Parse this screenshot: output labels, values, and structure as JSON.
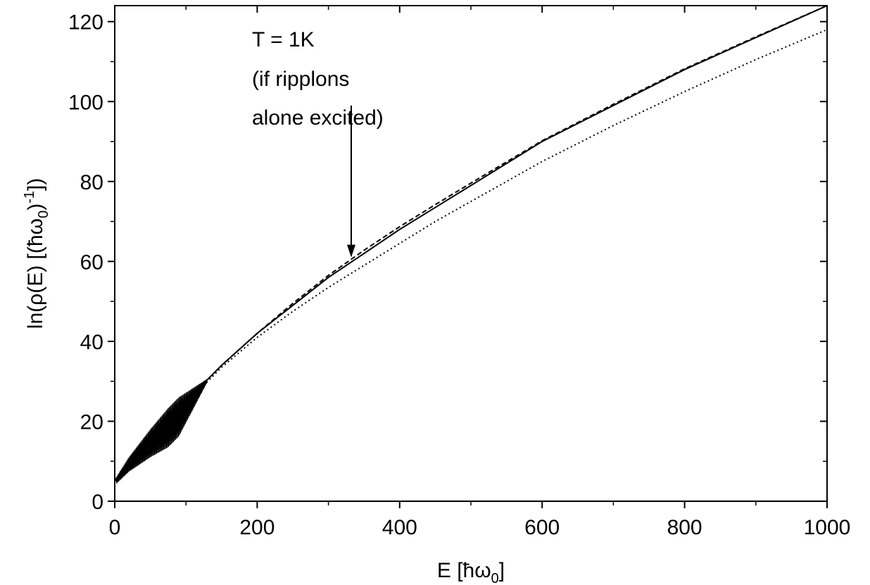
{
  "chart_data": {
    "type": "line",
    "title": "",
    "xlabel": "E [ħω0]",
    "ylabel": "ln(ρ(E) [(ħω0)-1])",
    "xlabel_parts": {
      "main": "E [ħω",
      "sub": "0",
      "end": "]"
    },
    "ylabel_parts": {
      "main": "ln(ρ(E) [(ħω",
      "sub": "0",
      "mid": ")",
      "sup": "-1",
      "end": "])"
    },
    "xlim": [
      0,
      1000
    ],
    "ylim": [
      0,
      124
    ],
    "x_ticks": [
      0,
      200,
      400,
      600,
      800,
      1000
    ],
    "y_ticks": [
      0,
      20,
      40,
      60,
      80,
      100,
      120
    ],
    "x_minor_step": 100,
    "y_minor_step": 10,
    "grid": false,
    "annotation": {
      "lines": [
        "T = 1K",
        "(if ripplons",
        "alone excited)"
      ],
      "arrow_from": [
        332,
        99
      ],
      "arrow_to": [
        332,
        61
      ]
    },
    "series": [
      {
        "style": "solid",
        "x": [
          0,
          20,
          50,
          100,
          150,
          200,
          250,
          300,
          350,
          400,
          450,
          500,
          600,
          700,
          800,
          900,
          1000
        ],
        "y": [
          5,
          10,
          16,
          25,
          34,
          42,
          49,
          56,
          62,
          68,
          73.5,
          79,
          90,
          99,
          108,
          116,
          124
        ]
      },
      {
        "style": "dashed",
        "x": [
          0,
          20,
          50,
          100,
          150,
          200,
          250,
          300,
          350,
          400,
          450,
          500,
          600,
          700,
          800,
          900,
          1000
        ],
        "y": [
          5,
          10,
          16,
          25,
          34,
          42,
          49.5,
          56.5,
          62.8,
          68.7,
          74.2,
          79.6,
          90.2,
          99.3,
          108.2,
          116.2,
          124
        ]
      },
      {
        "style": "dotted",
        "x": [
          0,
          20,
          50,
          100,
          150,
          200,
          250,
          300,
          350,
          400,
          450,
          500,
          600,
          700,
          800,
          900,
          1000
        ],
        "y": [
          5,
          10,
          15.5,
          24.5,
          33.5,
          41,
          47.5,
          53.5,
          59,
          64.5,
          70,
          75,
          85,
          94,
          102.5,
          110.5,
          118
        ]
      }
    ]
  }
}
